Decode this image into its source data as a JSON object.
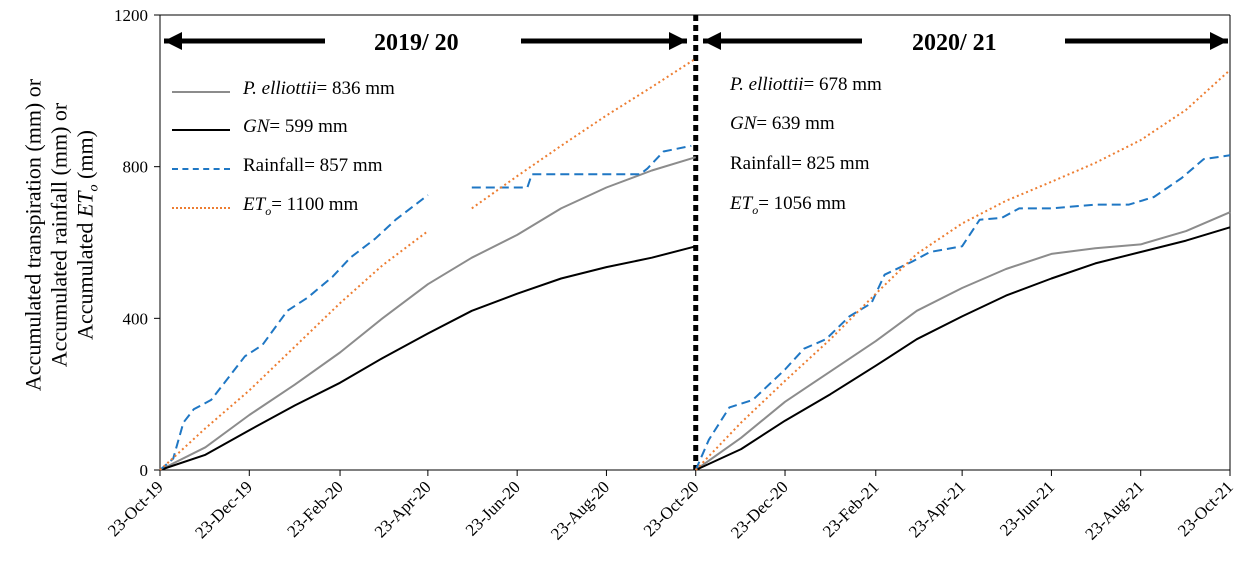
{
  "chart_data": {
    "type": "line",
    "ylabel_lines": [
      "Accumulated transpiration (mm) or",
      "Accumulated rainfall (mm) or",
      "Accumulated ETo (mm)"
    ],
    "ylim": [
      0,
      1200
    ],
    "yticks": [
      "0",
      "400",
      "800",
      "1200"
    ],
    "xticks": [
      "23-Oct-19",
      "23-Dec-19",
      "23-Feb-20",
      "23-Apr-20",
      "23-Jun-20",
      "23-Aug-20",
      "23-Oct-20",
      "23-Dec-20",
      "23-Feb-21",
      "23-Apr-21",
      "23-Jun-21",
      "23-Aug-21",
      "23-Oct-21"
    ],
    "grid": false,
    "panels": [
      {
        "period_label": "2019/ 20",
        "legend": [
          {
            "name": "P. elliottii",
            "value": "= 836 mm"
          },
          {
            "name": "GN",
            "value": "= 599 mm"
          },
          {
            "name": "Rainfall",
            "value": "= 857 mm"
          },
          {
            "name": "ETo",
            "value": "= 1100 mm"
          }
        ],
        "series": [
          {
            "name": "P. elliottii",
            "color": "#8c8c8c",
            "style": "solid",
            "x": [
              "23-Oct-19",
              "23-Nov-19",
              "23-Dec-19",
              "23-Jan-20",
              "23-Feb-20",
              "23-Mar-20",
              "23-Apr-20",
              "23-May-20",
              "23-Jun-20",
              "23-Jul-20",
              "23-Aug-20",
              "23-Sep-20",
              "23-Oct-20"
            ],
            "values": [
              0,
              60,
              145,
              225,
              310,
              400,
              490,
              560,
              620,
              690,
              745,
              790,
              825
            ]
          },
          {
            "name": "GN",
            "color": "#000000",
            "style": "solid",
            "x": [
              "23-Oct-19",
              "23-Nov-19",
              "23-Dec-19",
              "23-Jan-20",
              "23-Feb-20",
              "23-Mar-20",
              "23-Apr-20",
              "23-May-20",
              "23-Jun-20",
              "23-Jul-20",
              "23-Aug-20",
              "23-Sep-20",
              "23-Oct-20"
            ],
            "values": [
              0,
              40,
              105,
              170,
              230,
              295,
              360,
              420,
              465,
              505,
              535,
              560,
              590
            ]
          },
          {
            "name": "Rainfall",
            "color": "#1f77c4",
            "style": "dashed",
            "segments": [
              {
                "x": [
                  "23-Oct-19",
                  "01-Nov-19",
                  "08-Nov-19",
                  "15-Nov-19",
                  "27-Nov-19",
                  "10-Dec-19",
                  "20-Dec-19",
                  "01-Jan-20",
                  "18-Jan-20",
                  "01-Feb-20",
                  "18-Feb-20",
                  "01-Mar-20",
                  "18-Mar-20",
                  "01-Apr-20",
                  "23-Apr-20"
                ],
                "values": [
                  0,
                  30,
                  125,
                  160,
                  185,
                  250,
                  300,
                  330,
                  420,
                  455,
                  510,
                  560,
                  610,
                  660,
                  725
                ]
              },
              {
                "x": [
                  "23-May-20",
                  "30-Jun-20",
                  "03-Jul-20",
                  "15-Sep-20",
                  "20-Sep-20",
                  "01-Oct-20",
                  "20-Oct-20"
                ],
                "values": [
                  745,
                  745,
                  780,
                  780,
                  795,
                  840,
                  855
                ]
              }
            ]
          },
          {
            "name": "ETo",
            "color": "#ed7d31",
            "style": "dotted",
            "segments": [
              {
                "x": [
                  "23-Oct-19",
                  "23-Nov-19",
                  "23-Dec-19",
                  "23-Jan-20",
                  "23-Feb-20",
                  "23-Mar-20",
                  "23-Apr-20"
                ],
                "values": [
                  0,
                  110,
                  210,
                  325,
                  440,
                  540,
                  630
                ]
              },
              {
                "x": [
                  "23-May-20",
                  "23-Jun-20",
                  "23-Jul-20",
                  "23-Aug-20",
                  "23-Sep-20",
                  "23-Oct-20"
                ],
                "values": [
                  690,
                  775,
                  855,
                  935,
                  1010,
                  1085
                ]
              }
            ]
          }
        ]
      },
      {
        "period_label": "2020/ 21",
        "legend": [
          {
            "name": "P. elliottii",
            "value": "= 678 mm"
          },
          {
            "name": "GN",
            "value": "= 639 mm"
          },
          {
            "name": "Rainfall",
            "value": "= 825 mm"
          },
          {
            "name": "ETo",
            "value": "= 1056 mm"
          }
        ],
        "series": [
          {
            "name": "P. elliottii",
            "color": "#8c8c8c",
            "style": "solid",
            "x": [
              "23-Oct-20",
              "23-Nov-20",
              "23-Dec-20",
              "23-Jan-21",
              "23-Feb-21",
              "23-Mar-21",
              "23-Apr-21",
              "23-May-21",
              "23-Jun-21",
              "23-Jul-21",
              "23-Aug-21",
              "23-Sep-21",
              "23-Oct-21"
            ],
            "values": [
              0,
              85,
              180,
              260,
              340,
              420,
              480,
              530,
              570,
              585,
              595,
              630,
              680
            ]
          },
          {
            "name": "GN",
            "color": "#000000",
            "style": "solid",
            "x": [
              "23-Oct-20",
              "23-Nov-20",
              "23-Dec-20",
              "23-Jan-21",
              "23-Feb-21",
              "23-Mar-21",
              "23-Apr-21",
              "23-May-21",
              "23-Jun-21",
              "23-Jul-21",
              "23-Aug-21",
              "23-Sep-21",
              "23-Oct-21"
            ],
            "values": [
              0,
              55,
              130,
              200,
              275,
              345,
              405,
              460,
              505,
              545,
              575,
              605,
              640
            ]
          },
          {
            "name": "Rainfall",
            "color": "#1f77c4",
            "style": "dashed",
            "x": [
              "23-Oct-20",
              "01-Nov-20",
              "15-Nov-20",
              "01-Dec-20",
              "23-Dec-20",
              "05-Jan-21",
              "20-Jan-21",
              "05-Feb-21",
              "20-Feb-21",
              "01-Mar-21",
              "20-Mar-21",
              "01-Apr-21",
              "23-Apr-21",
              "05-May-21",
              "20-May-21",
              "01-Jun-21",
              "23-Jun-21",
              "23-Jul-21",
              "15-Aug-21",
              "01-Sep-21",
              "20-Sep-21",
              "05-Oct-21",
              "23-Oct-21"
            ],
            "values": [
              0,
              80,
              165,
              185,
              265,
              320,
              345,
              405,
              440,
              515,
              550,
              575,
              590,
              660,
              665,
              690,
              690,
              700,
              700,
              720,
              770,
              820,
              830
            ]
          },
          {
            "name": "ETo",
            "color": "#ed7d31",
            "style": "dotted",
            "x": [
              "23-Oct-20",
              "23-Nov-20",
              "23-Dec-20",
              "23-Jan-21",
              "23-Feb-21",
              "23-Mar-21",
              "23-Apr-21",
              "23-May-21",
              "23-Jun-21",
              "23-Jul-21",
              "23-Aug-21",
              "23-Sep-21",
              "23-Oct-21"
            ],
            "values": [
              0,
              125,
              235,
              345,
              465,
              570,
              650,
              710,
              760,
              810,
              870,
              950,
              1055
            ]
          }
        ]
      }
    ]
  }
}
